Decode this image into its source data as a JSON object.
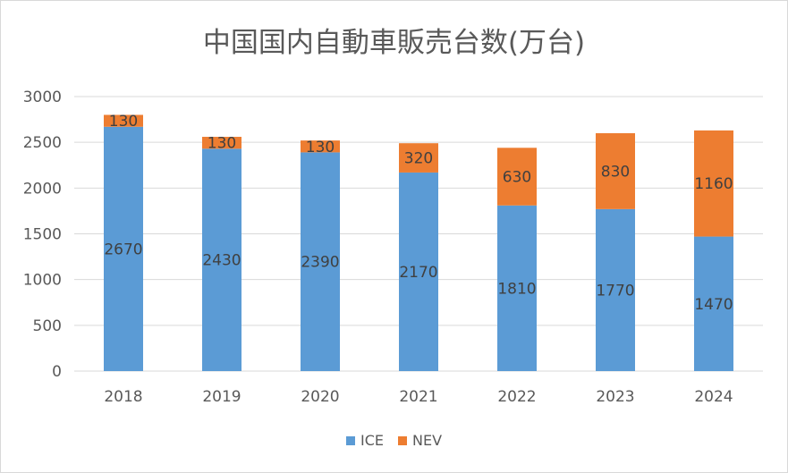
{
  "chart_data": {
    "type": "bar",
    "stacked": true,
    "title": "中国国内自動車販売台数(万台)",
    "categories": [
      "2018",
      "2019",
      "2020",
      "2021",
      "2022",
      "2023",
      "2024"
    ],
    "series": [
      {
        "name": "ICE",
        "color": "#5b9bd5",
        "values": [
          2670,
          2430,
          2390,
          2170,
          1810,
          1770,
          1470
        ]
      },
      {
        "name": "NEV",
        "color": "#ed7d31",
        "values": [
          130,
          130,
          130,
          320,
          630,
          830,
          1160
        ]
      }
    ],
    "ylim": [
      0,
      3000
    ],
    "yticks": [
      0,
      500,
      1000,
      1500,
      2000,
      2500,
      3000
    ],
    "grid": true,
    "legend": "bottom"
  }
}
